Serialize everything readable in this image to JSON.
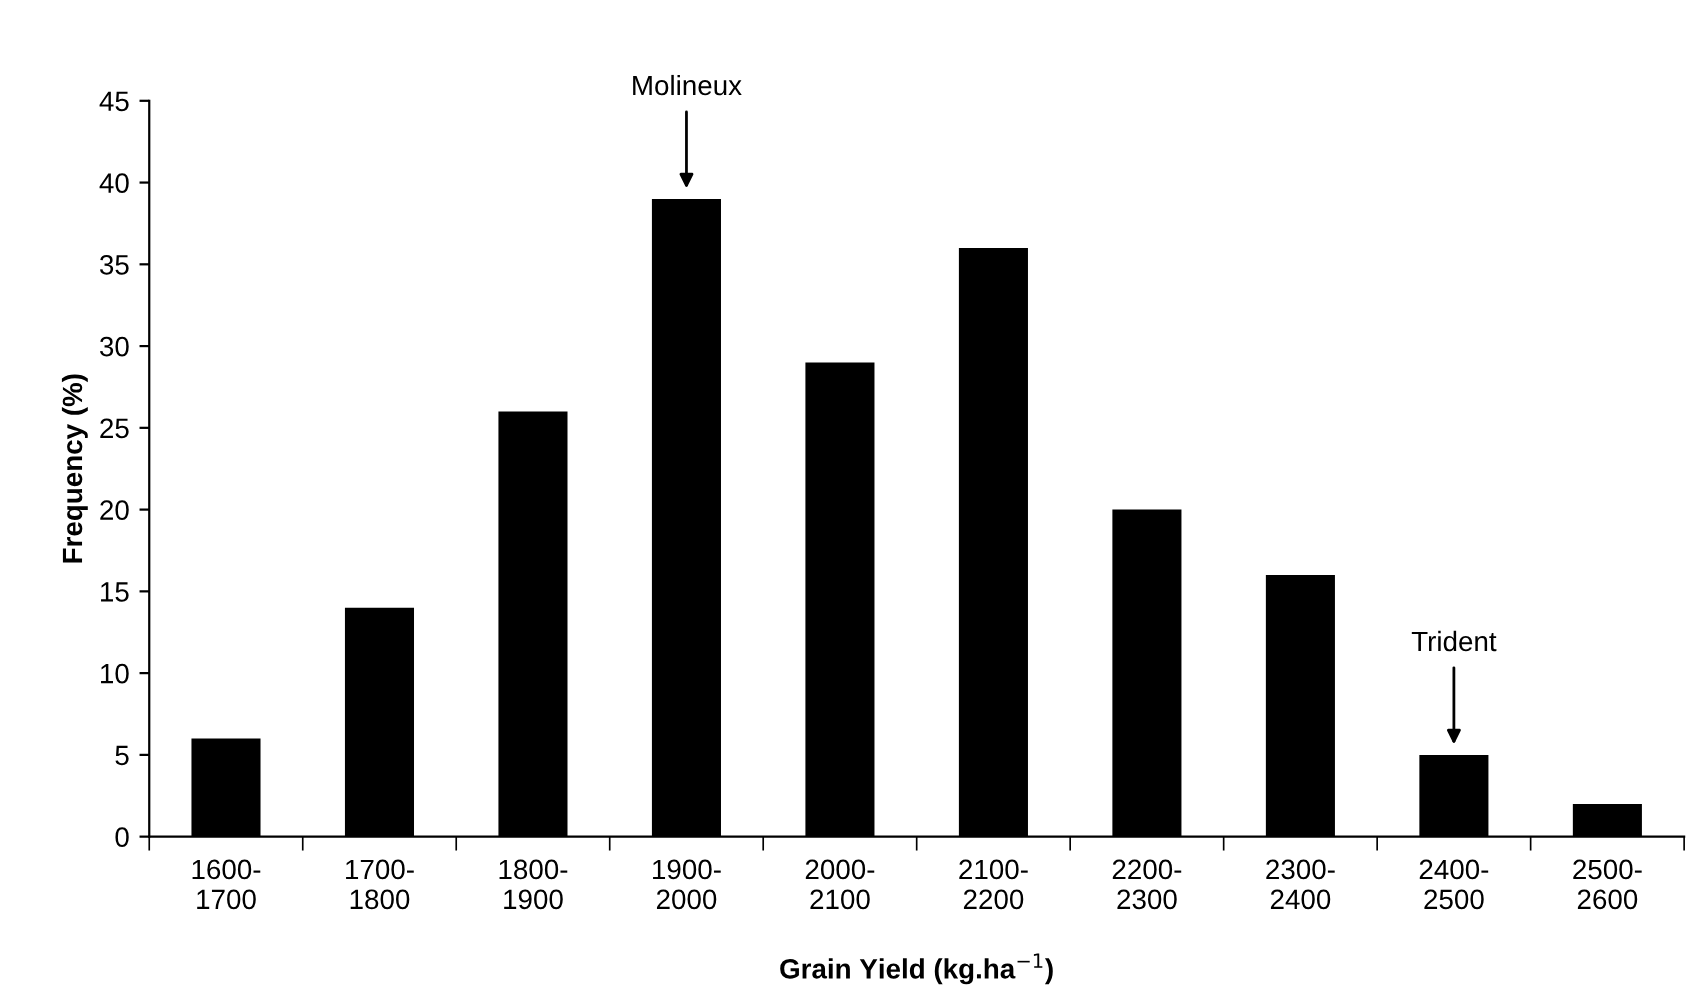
{
  "chart_data": {
    "type": "bar",
    "categories": [
      "1600-\n1700",
      "1700-\n1800",
      "1800-\n1900",
      "1900-\n2000",
      "2000-\n2100",
      "2100-\n2200",
      "2200-\n2300",
      "2300-\n2400",
      "2400-\n2500",
      "2500-\n2600"
    ],
    "values": [
      6,
      14,
      26,
      39,
      29,
      36,
      20,
      16,
      5,
      2
    ],
    "color": "#000000",
    "xlabel": "Grain Yield (kg.ha$^{−1}$)",
    "ylabel": "Frequency (%)",
    "ylim": [
      0,
      45
    ],
    "yticks": [
      0,
      5,
      10,
      15,
      20,
      25,
      30,
      35,
      40,
      45
    ],
    "grid": false,
    "legend": false,
    "annotations": [
      {
        "text": "Molineux",
        "x": "1900-\n2000",
        "y": 39
      },
      {
        "text": "Trident",
        "x": "2400-\n2500",
        "y": 5
      }
    ]
  }
}
